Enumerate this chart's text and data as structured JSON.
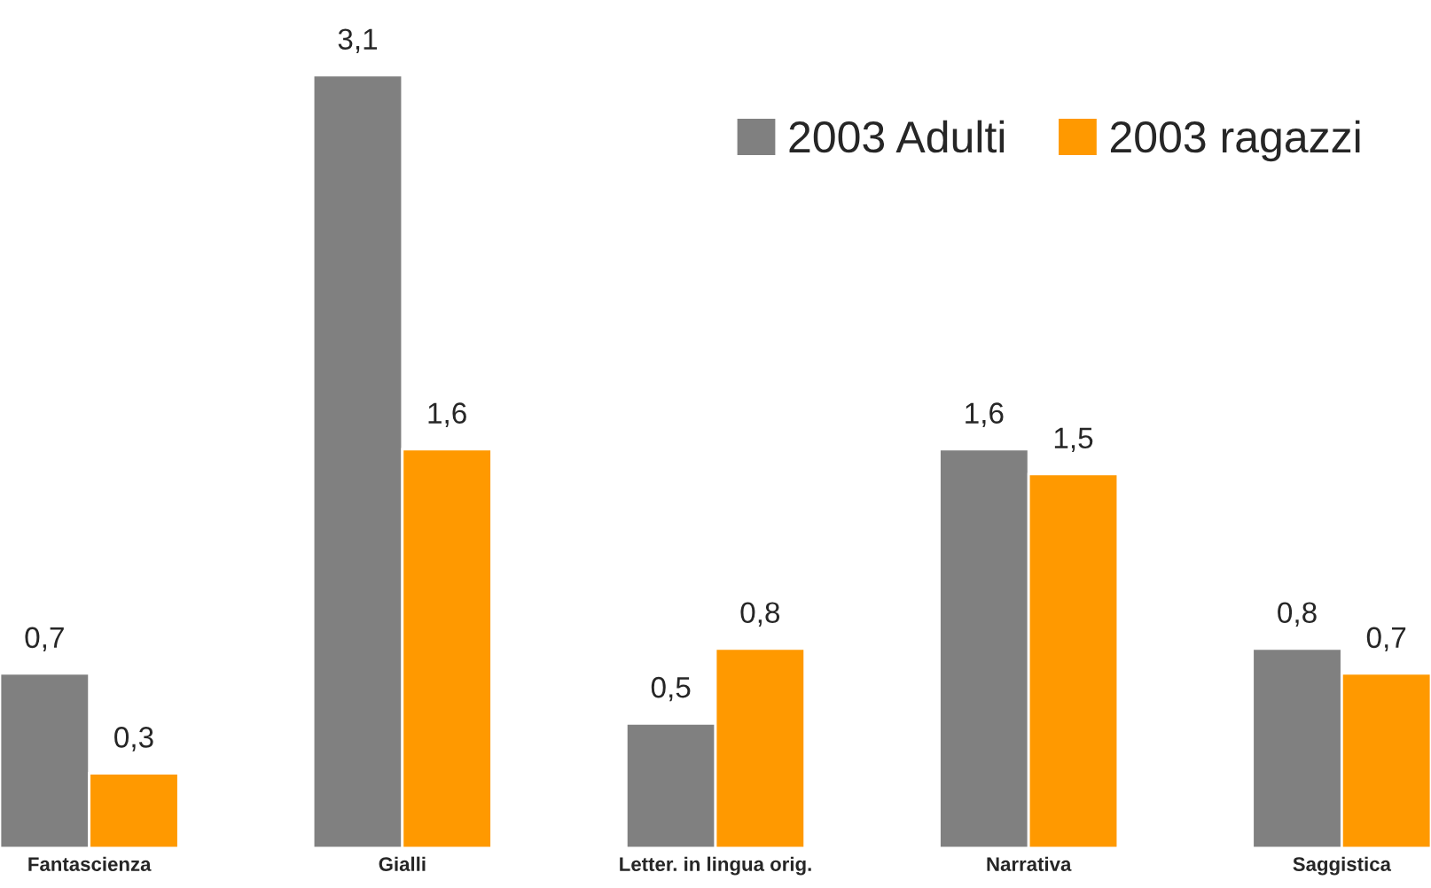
{
  "chart_data": {
    "type": "bar",
    "categories": [
      "Fantascienza",
      "Gialli",
      "Letter. in lingua orig.",
      "Narrativa",
      "Saggistica"
    ],
    "series": [
      {
        "name": "2003 Adulti",
        "color": "#808080",
        "values": [
          0.7,
          3.1,
          0.5,
          1.6,
          0.8
        ],
        "value_labels": [
          "0,7",
          "3,1",
          "0,5",
          "1,6",
          "0,8"
        ]
      },
      {
        "name": "2003 ragazzi",
        "color": "#ff9900",
        "values": [
          0.3,
          1.6,
          0.8,
          1.5,
          0.7
        ],
        "value_labels": [
          "0,3",
          "1,6",
          "0,8",
          "1,5",
          "0,7"
        ]
      }
    ],
    "legend": "top right",
    "grid": false,
    "tick_labels": "x"
  }
}
